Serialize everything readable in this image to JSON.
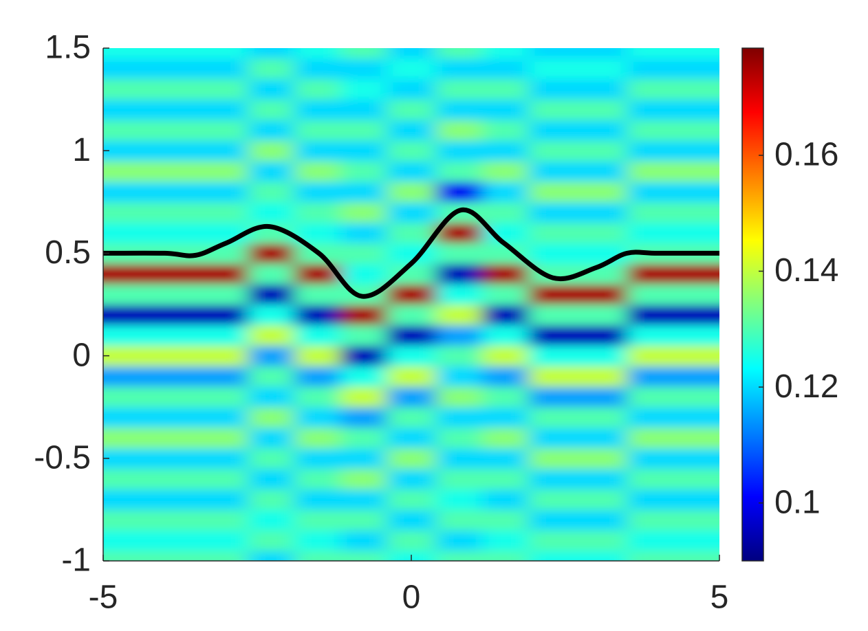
{
  "chart_data": {
    "type": "heatmap",
    "colormap": "jet",
    "x": [
      -5,
      -4,
      -3,
      -2.3,
      -1.5,
      -0.8,
      0,
      0.8,
      1.5,
      2.3,
      3,
      4,
      5
    ],
    "y": [
      -1,
      -0.9,
      -0.8,
      -0.7,
      -0.6,
      -0.5,
      -0.4,
      -0.3,
      -0.2,
      -0.1,
      0,
      0.1,
      0.2,
      0.3,
      0.4,
      0.5,
      0.6,
      0.7,
      0.8,
      0.9,
      1,
      1.1,
      1.2,
      1.3,
      1.4,
      1.5
    ],
    "z": [
      [
        0.13,
        0.13,
        0.13,
        0.12,
        0.13,
        0.13,
        0.125,
        0.13,
        0.13,
        0.125,
        0.125,
        0.13,
        0.13
      ],
      [
        0.125,
        0.125,
        0.125,
        0.13,
        0.125,
        0.12,
        0.13,
        0.12,
        0.125,
        0.13,
        0.13,
        0.125,
        0.125
      ],
      [
        0.13,
        0.13,
        0.13,
        0.125,
        0.13,
        0.13,
        0.12,
        0.13,
        0.13,
        0.12,
        0.12,
        0.13,
        0.13
      ],
      [
        0.12,
        0.12,
        0.12,
        0.13,
        0.12,
        0.12,
        0.13,
        0.125,
        0.12,
        0.13,
        0.13,
        0.12,
        0.12
      ],
      [
        0.13,
        0.13,
        0.13,
        0.12,
        0.13,
        0.135,
        0.12,
        0.13,
        0.13,
        0.12,
        0.12,
        0.13,
        0.13
      ],
      [
        0.12,
        0.12,
        0.12,
        0.13,
        0.12,
        0.12,
        0.135,
        0.12,
        0.12,
        0.135,
        0.135,
        0.12,
        0.12
      ],
      [
        0.135,
        0.135,
        0.135,
        0.12,
        0.135,
        0.13,
        0.12,
        0.13,
        0.135,
        0.12,
        0.12,
        0.135,
        0.135
      ],
      [
        0.12,
        0.12,
        0.12,
        0.135,
        0.12,
        0.115,
        0.13,
        0.12,
        0.12,
        0.13,
        0.13,
        0.12,
        0.12
      ],
      [
        0.13,
        0.13,
        0.13,
        0.12,
        0.13,
        0.14,
        0.115,
        0.135,
        0.13,
        0.115,
        0.115,
        0.13,
        0.13
      ],
      [
        0.115,
        0.115,
        0.115,
        0.13,
        0.115,
        0.125,
        0.14,
        0.12,
        0.115,
        0.14,
        0.14,
        0.115,
        0.115
      ],
      [
        0.14,
        0.14,
        0.14,
        0.115,
        0.14,
        0.095,
        0.125,
        0.13,
        0.14,
        0.125,
        0.125,
        0.14,
        0.14
      ],
      [
        0.125,
        0.125,
        0.125,
        0.14,
        0.125,
        0.13,
        0.095,
        0.115,
        0.125,
        0.095,
        0.095,
        0.125,
        0.125
      ],
      [
        0.095,
        0.095,
        0.095,
        0.125,
        0.095,
        0.175,
        0.13,
        0.14,
        0.095,
        0.13,
        0.13,
        0.095,
        0.095
      ],
      [
        0.13,
        0.13,
        0.13,
        0.095,
        0.13,
        0.13,
        0.175,
        0.125,
        0.13,
        0.175,
        0.175,
        0.13,
        0.13
      ],
      [
        0.175,
        0.175,
        0.175,
        0.13,
        0.175,
        0.125,
        0.13,
        0.095,
        0.175,
        0.13,
        0.13,
        0.175,
        0.175
      ],
      [
        0.13,
        0.13,
        0.13,
        0.175,
        0.13,
        0.13,
        0.125,
        0.13,
        0.13,
        0.125,
        0.125,
        0.13,
        0.13
      ],
      [
        0.125,
        0.125,
        0.125,
        0.13,
        0.125,
        0.12,
        0.13,
        0.175,
        0.125,
        0.13,
        0.13,
        0.125,
        0.125
      ],
      [
        0.13,
        0.13,
        0.13,
        0.125,
        0.13,
        0.135,
        0.12,
        0.13,
        0.13,
        0.12,
        0.12,
        0.13,
        0.13
      ],
      [
        0.12,
        0.12,
        0.12,
        0.13,
        0.12,
        0.12,
        0.135,
        0.1,
        0.12,
        0.135,
        0.135,
        0.12,
        0.12
      ],
      [
        0.135,
        0.135,
        0.135,
        0.12,
        0.135,
        0.13,
        0.12,
        0.13,
        0.135,
        0.12,
        0.12,
        0.135,
        0.135
      ],
      [
        0.12,
        0.12,
        0.12,
        0.135,
        0.12,
        0.12,
        0.13,
        0.12,
        0.12,
        0.13,
        0.13,
        0.12,
        0.12
      ],
      [
        0.13,
        0.13,
        0.13,
        0.12,
        0.13,
        0.13,
        0.12,
        0.135,
        0.13,
        0.12,
        0.12,
        0.13,
        0.13
      ],
      [
        0.12,
        0.12,
        0.12,
        0.13,
        0.12,
        0.12,
        0.13,
        0.12,
        0.12,
        0.13,
        0.13,
        0.12,
        0.12
      ],
      [
        0.13,
        0.13,
        0.13,
        0.12,
        0.13,
        0.125,
        0.12,
        0.13,
        0.13,
        0.12,
        0.12,
        0.13,
        0.13
      ],
      [
        0.12,
        0.12,
        0.12,
        0.13,
        0.12,
        0.12,
        0.125,
        0.12,
        0.12,
        0.125,
        0.125,
        0.12,
        0.12
      ],
      [
        0.125,
        0.125,
        0.125,
        0.12,
        0.125,
        0.13,
        0.12,
        0.13,
        0.125,
        0.12,
        0.12,
        0.125,
        0.125
      ]
    ],
    "curve": {
      "color": "#000000",
      "x": [
        -5,
        -4,
        -3.5,
        -3,
        -2.3,
        -1.5,
        -0.8,
        0,
        0.8,
        1.5,
        2.3,
        3,
        3.5,
        4,
        5
      ],
      "y": [
        0.5,
        0.5,
        0.49,
        0.55,
        0.63,
        0.5,
        0.29,
        0.45,
        0.71,
        0.55,
        0.38,
        0.43,
        0.5,
        0.5,
        0.5
      ]
    },
    "xlim": [
      -5,
      5
    ],
    "xticks": [
      -5,
      0,
      5
    ],
    "ylim": [
      -1,
      1.5
    ],
    "yticks": [
      -1,
      -0.5,
      0,
      0.5,
      1,
      1.5
    ],
    "clim": [
      0.09,
      0.1785
    ],
    "cticks": [
      0.1,
      0.12,
      0.14,
      0.16
    ]
  }
}
